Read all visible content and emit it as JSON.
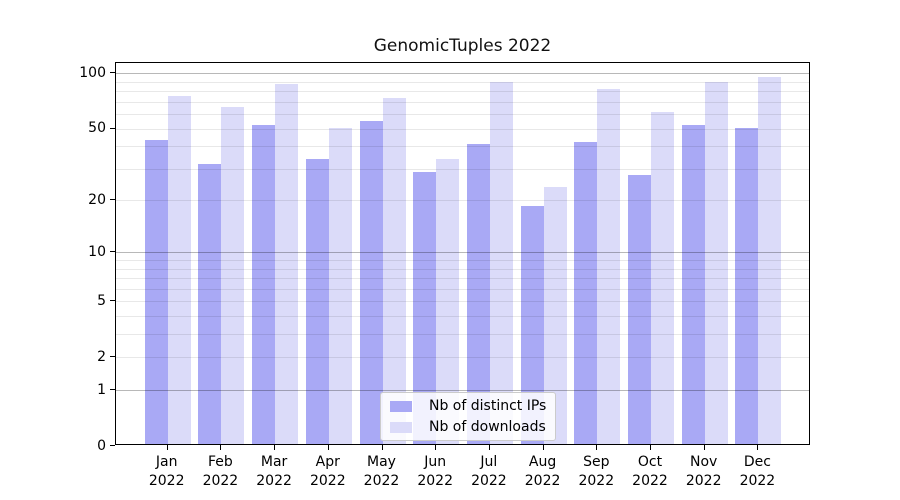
{
  "chart_data": {
    "type": "bar",
    "title": "GenomicTuples 2022",
    "categories": [
      "Jan",
      "Feb",
      "Mar",
      "Apr",
      "May",
      "Jun",
      "Jul",
      "Aug",
      "Sep",
      "Oct",
      "Nov",
      "Dec"
    ],
    "category_year": "2022",
    "series": [
      {
        "name": "Nb of distinct IPs",
        "color": "#a9a9f5",
        "values": [
          42,
          31,
          51,
          33,
          54,
          28,
          40,
          18,
          41,
          27,
          51,
          49
        ]
      },
      {
        "name": "Nb of downloads",
        "color": "#dbdbf9",
        "values": [
          74,
          64,
          85,
          49,
          72,
          33,
          88,
          23,
          80,
          60,
          88,
          93
        ]
      }
    ],
    "y_axis": {
      "scale": "log1p",
      "tick_labels": [
        0,
        1,
        2,
        5,
        10,
        20,
        50,
        100
      ],
      "major_gridlines": [
        1,
        10,
        100
      ],
      "minor_gridlines": [
        2,
        3,
        4,
        5,
        6,
        7,
        8,
        9,
        20,
        30,
        40,
        50,
        60,
        70,
        80,
        90
      ],
      "ylim": [
        0,
        114
      ]
    },
    "xlabel": "",
    "ylabel": "",
    "grid": "on",
    "legend_position": "bottom-center",
    "colors": {
      "major_grid": "rgba(0,0,0,0.28)",
      "minor_grid": "rgba(0,0,0,0.09)",
      "axis": "#000000",
      "background": "#ffffff"
    }
  }
}
